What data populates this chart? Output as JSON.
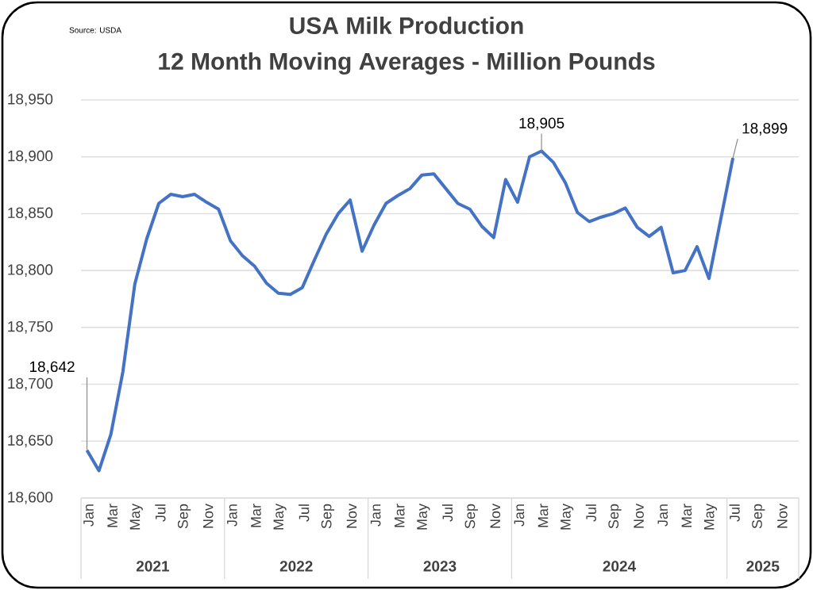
{
  "chart_data": {
    "type": "line",
    "title": "USA Milk Production",
    "subtitle": "12 Month Moving Averages - Million Pounds",
    "annotations": [
      "Source: USDA",
      "2021",
      "2022",
      "2023",
      "2024",
      "2025"
    ],
    "categories": [
      "Jan",
      null,
      "Mar",
      null,
      "May",
      null,
      "Jul",
      null,
      "Sep",
      null,
      "Nov",
      null,
      "Jan",
      null,
      "Mar",
      null,
      "May",
      null,
      "Jul",
      null,
      "Sep",
      null,
      "Nov",
      null,
      "Jan",
      null,
      "Mar",
      null,
      "May",
      null,
      "Jul",
      null,
      "Sep",
      null,
      "Nov",
      null,
      "Jan",
      null,
      "Mar",
      null,
      "May",
      null,
      "Jul",
      null,
      "Sep",
      null,
      "Nov",
      null,
      "Jan",
      null,
      "Mar",
      null,
      "May",
      null,
      "Jul",
      null,
      "Sep",
      null,
      "Nov",
      null
    ],
    "values": [
      18642,
      18624,
      18656,
      18711,
      18788,
      18828,
      18859,
      18867,
      18865,
      18867,
      18860,
      18854,
      18826,
      18813,
      18804,
      18789,
      18780,
      18779,
      18785,
      18809,
      18832,
      18850,
      18862,
      18817,
      18840,
      18859,
      18866,
      18872,
      18884,
      18885,
      18872,
      18859,
      18854,
      18839,
      18829,
      18880,
      18860,
      18900,
      18905,
      18895,
      18877,
      18851,
      18843,
      18847,
      18850,
      18855,
      18838,
      18830,
      18838,
      18798,
      18800,
      18821,
      18793,
      18846,
      18899,
      null,
      null,
      null,
      null,
      null
    ],
    "value_labels": [
      "18,642",
      null,
      null,
      null,
      null,
      null,
      null,
      null,
      null,
      null,
      null,
      null,
      null,
      null,
      null,
      null,
      null,
      null,
      null,
      null,
      null,
      null,
      null,
      null,
      null,
      null,
      null,
      null,
      null,
      null,
      null,
      null,
      null,
      null,
      null,
      null,
      null,
      null,
      "18,905",
      null,
      null,
      null,
      null,
      null,
      null,
      null,
      null,
      null,
      null,
      null,
      null,
      null,
      null,
      null,
      "18,899",
      null,
      null,
      null,
      null,
      null
    ],
    "color": "#4472c4",
    "ylim": [
      18600,
      18950
    ],
    "yticks": [
      {
        "value": 18600,
        "label": "18,600"
      },
      {
        "value": 18650,
        "label": "18,650"
      },
      {
        "value": 18700,
        "label": "18,700"
      },
      {
        "value": 18750,
        "label": "18,750"
      },
      {
        "value": 18800,
        "label": "18,800"
      },
      {
        "value": 18850,
        "label": "18,850"
      },
      {
        "value": 18900,
        "label": "18,900"
      },
      {
        "value": 18950,
        "label": "18,950"
      }
    ],
    "grid": "y"
  }
}
